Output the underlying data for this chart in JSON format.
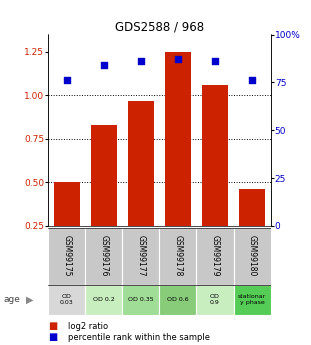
{
  "title": "GDS2588 / 968",
  "samples": [
    "GSM99175",
    "GSM99176",
    "GSM99177",
    "GSM99178",
    "GSM99179",
    "GSM99180"
  ],
  "log2_ratio": [
    0.5,
    0.83,
    0.97,
    1.25,
    1.06,
    0.46
  ],
  "percentile_rank_pct": [
    76,
    84,
    86,
    87,
    86,
    76
  ],
  "bar_color": "#cc2200",
  "dot_color": "#0000cc",
  "bar_bottom": 0.25,
  "ylim_left": [
    0.25,
    1.35
  ],
  "ylim_right": [
    0,
    100
  ],
  "yticks_left": [
    0.25,
    0.5,
    0.75,
    1.0,
    1.25
  ],
  "yticks_right": [
    0,
    25,
    50,
    75,
    100
  ],
  "hlines": [
    0.5,
    0.75,
    1.0
  ],
  "label_row1": [
    "OD\n0.03",
    "OD 0.2",
    "OD 0.35",
    "OD 0.6",
    "OD\n0.9",
    "stationar\ny phase"
  ],
  "label_colors": [
    "#d8d8d8",
    "#c8eec0",
    "#a0dd96",
    "#88cc7a",
    "#c8eec0",
    "#55cc55"
  ],
  "header_color": "#c8c8c8",
  "legend_bar": "log2 ratio",
  "legend_dot": "percentile rank within the sample",
  "age_label": "age"
}
